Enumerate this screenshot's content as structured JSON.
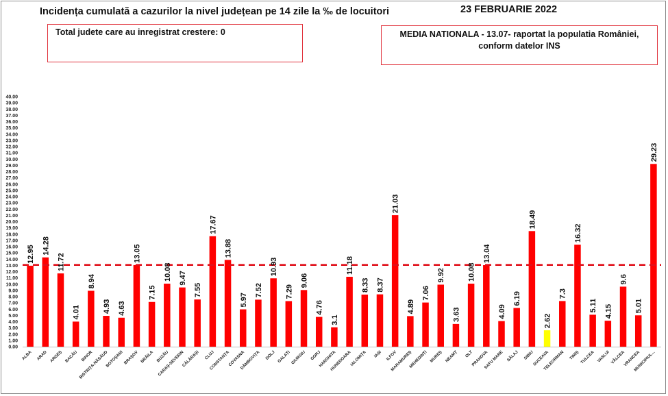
{
  "header": {
    "title": "Incidența cumulată a cazurilor la nivel județean pe 14 zile la ‰ de locuitori",
    "date": "23 FEBRUARIE 2022"
  },
  "left_box": {
    "text": "Total judete care au inregistrat crestere: 0"
  },
  "right_box": {
    "line1": "MEDIA NATIONALA - 13.07-  raportat la populatia României,",
    "line2": "conform datelor INS"
  },
  "chart_data": {
    "type": "bar",
    "categories": [
      "ALBA",
      "ARAD",
      "ARGEȘ",
      "BACĂU",
      "BIHOR",
      "BISTRIȚA-NĂSĂUD",
      "BOTOȘANI",
      "BRAȘOV",
      "BRĂILA",
      "BUZĂU",
      "CARAȘ-SEVERIN",
      "CĂLĂRAȘI",
      "CLUJ",
      "CONSTANȚA",
      "COVASNA",
      "DÂMBOVIȚA",
      "DOLJ",
      "GALAȚI",
      "GIURGIU",
      "GORJ",
      "HARGHITA",
      "HUNEDOARA",
      "IALOMIȚA",
      "IAȘI",
      "ILFOV",
      "MARAMUREȘ",
      "MEHEDINȚI",
      "MUREȘ",
      "NEAMȚ",
      "OLT",
      "PRAHOVA",
      "SATU MARE",
      "SĂLAJ",
      "SIBIU",
      "SUCEAVA",
      "TELEORMAN",
      "TIMIȘ",
      "TULCEA",
      "VASLUI",
      "VÂLCEA",
      "VRANCEA",
      "MUNICIPIUL..."
    ],
    "values": [
      12.95,
      14.28,
      11.72,
      4.01,
      8.94,
      4.93,
      4.63,
      13.05,
      7.15,
      10.08,
      9.47,
      7.55,
      17.67,
      13.88,
      5.97,
      7.52,
      10.93,
      7.29,
      9.06,
      4.76,
      3.1,
      11.18,
      8.33,
      8.37,
      21.03,
      4.89,
      7.06,
      9.92,
      3.63,
      10.08,
      13.04,
      4.09,
      6.19,
      18.49,
      2.62,
      7.3,
      16.32,
      5.11,
      4.15,
      9.6,
      5.01,
      29.23
    ],
    "value_labels": [
      "12.95",
      "14.28",
      "11.72",
      "4.01",
      "8.94",
      "4.93",
      "4.63",
      "13.05",
      "7.15",
      "10.08",
      "9.47",
      "7.55",
      "17.67",
      "13.88",
      "5.97",
      "7.52",
      "10.93",
      "7.29",
      "9.06",
      "4.76",
      "3.1",
      "11.18",
      "8.33",
      "8.37",
      "21.03",
      "4.89",
      "7.06",
      "9.92",
      "3.63",
      "10.08",
      "13.04",
      "4.09",
      "6.19",
      "18.49",
      "2.62",
      "7.3",
      "16.32",
      "5.11",
      "4.15",
      "9.6",
      "5.01",
      "29.23"
    ],
    "y_ticks": [
      "0.00",
      "1.00",
      "2.00",
      "3.00",
      "4.00",
      "5.00",
      "6.00",
      "7.00",
      "8.00",
      "9.00",
      "10.00",
      "11.00",
      "12.00",
      "13.00",
      "14.00",
      "15.00",
      "16.00",
      "17.00",
      "18.00",
      "19.00",
      "20.00",
      "21.00",
      "22.00",
      "23.00",
      "24.00",
      "25.00",
      "26.00",
      "27.00",
      "28.00",
      "29.00",
      "30.00",
      "31.00",
      "32.00",
      "33.00",
      "34.00",
      "35.00",
      "36.00",
      "37.00",
      "38.00",
      "39.00",
      "40.00"
    ],
    "ylim": [
      0,
      40
    ],
    "reference_line": {
      "value": 13.07,
      "color": "#e0101a",
      "style": "dashed"
    },
    "bar_color": "#ff0000",
    "highlight": {
      "category": "SUCEAVA",
      "color": "#ffff00"
    },
    "grid": false,
    "title": "",
    "xlabel": "",
    "ylabel": ""
  }
}
